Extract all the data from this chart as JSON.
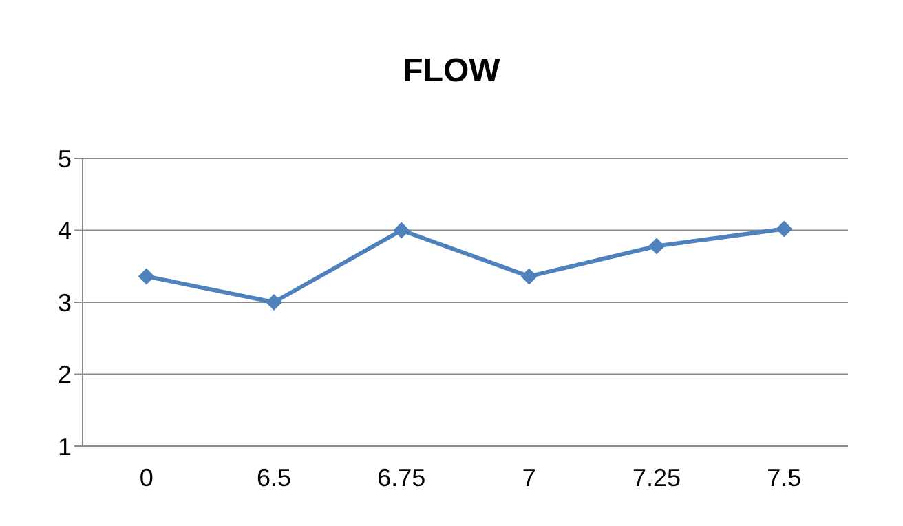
{
  "chart_data": {
    "type": "line",
    "title": "FLOW",
    "categories": [
      "0",
      "6.5",
      "6.75",
      "7",
      "7.25",
      "7.5"
    ],
    "series": [
      {
        "color": "#4f81bd",
        "values": [
          3.36,
          3.0,
          4.0,
          3.36,
          3.78,
          4.02
        ]
      }
    ],
    "ylim": [
      1,
      5
    ],
    "yticks": [
      1,
      2,
      3,
      4,
      5
    ],
    "grid": "y",
    "marker": "diamond",
    "line_style": "solid"
  }
}
